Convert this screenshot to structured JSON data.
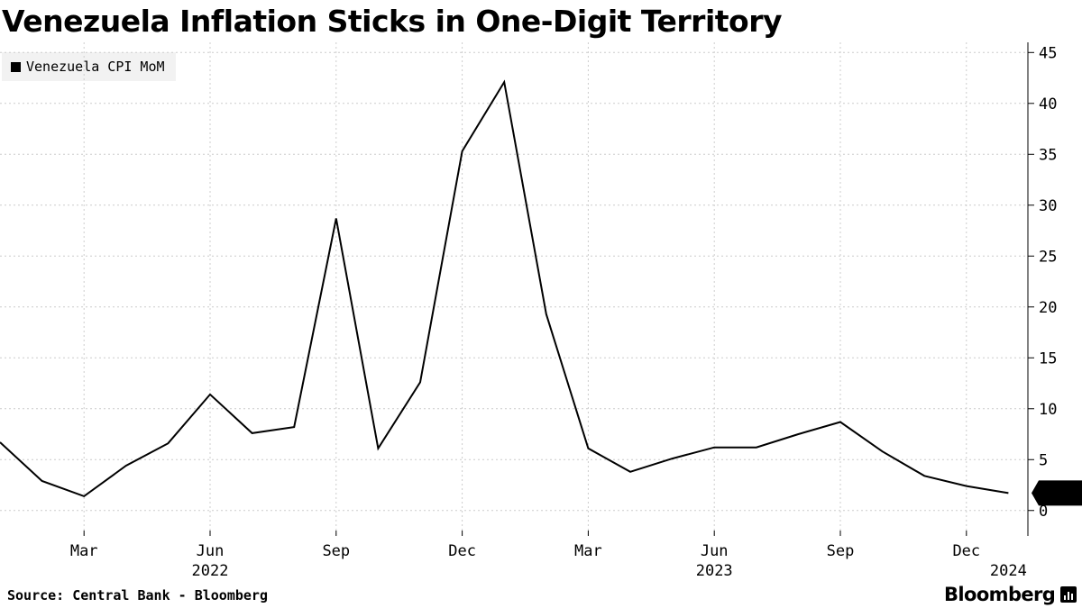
{
  "header": {
    "title": "Venezuela Inflation Sticks in One-Digit Territory"
  },
  "legend": {
    "label": "Venezuela CPI MoM"
  },
  "footer": {
    "source": "Source: Central Bank - Bloomberg",
    "brand": "Bloomberg"
  },
  "chart_data": {
    "type": "line",
    "title": "Venezuela Inflation Sticks in One-Digit Territory",
    "xlabel": "",
    "ylabel": "",
    "series": [
      {
        "name": "Venezuela CPI MoM",
        "x": [
          "2022-01",
          "2022-02",
          "2022-03",
          "2022-04",
          "2022-05",
          "2022-06",
          "2022-07",
          "2022-08",
          "2022-09",
          "2022-10",
          "2022-11",
          "2022-12",
          "2023-01",
          "2023-02",
          "2023-03",
          "2023-04",
          "2023-05",
          "2023-06",
          "2023-07",
          "2023-08",
          "2023-09",
          "2023-10",
          "2023-11",
          "2023-12",
          "2024-01"
        ],
        "values": [
          6.7,
          2.9,
          1.4,
          4.4,
          6.6,
          11.4,
          7.6,
          8.2,
          28.7,
          6.1,
          12.6,
          35.3,
          42.1,
          19.3,
          6.1,
          3.8,
          5.1,
          6.2,
          6.2,
          7.5,
          8.7,
          5.8,
          3.4,
          2.4,
          1.71
        ]
      }
    ],
    "last_value_label": "1.71",
    "ylim": [
      -2.5,
      46
    ],
    "y_ticks": [
      0,
      5,
      10,
      15,
      20,
      25,
      30,
      35,
      40,
      45
    ],
    "x_tick_labels": [
      {
        "month": "2022-03",
        "label": "Mar"
      },
      {
        "month": "2022-06",
        "label": "Jun"
      },
      {
        "month": "2022-09",
        "label": "Sep"
      },
      {
        "month": "2022-12",
        "label": "Dec"
      },
      {
        "month": "2023-03",
        "label": "Mar"
      },
      {
        "month": "2023-06",
        "label": "Jun"
      },
      {
        "month": "2023-09",
        "label": "Sep"
      },
      {
        "month": "2023-12",
        "label": "Dec"
      }
    ],
    "year_labels": [
      {
        "month": "2022-06",
        "label": "2022"
      },
      {
        "month": "2023-06",
        "label": "2023"
      },
      {
        "month": "2024-01",
        "label": "2024"
      }
    ],
    "grid": true,
    "y_axis_side": "right",
    "legend_position": "top-left",
    "colors": {
      "line": "#000000",
      "grid": "#cccccc"
    }
  }
}
